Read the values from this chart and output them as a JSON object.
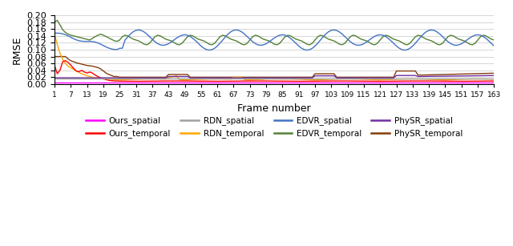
{
  "title": "",
  "xlabel": "Frame number",
  "ylabel": "RMSE",
  "ylim": [
    0,
    0.2
  ],
  "yticks": [
    0,
    0.02,
    0.04,
    0.06,
    0.08,
    0.1,
    0.12,
    0.14,
    0.16,
    0.18,
    0.2
  ],
  "xtick_labels": [
    "1",
    "7",
    "13",
    "19",
    "25",
    "31",
    "37",
    "43",
    "49",
    "55",
    "61",
    "67",
    "73",
    "79",
    "85",
    "91",
    "97",
    "103",
    "109",
    "115",
    "121",
    "127",
    "133",
    "139",
    "145",
    "151",
    "157",
    "163"
  ],
  "colors": {
    "Ours_spatial": "#FF00FF",
    "Ours_temporal": "#FF0000",
    "RDN_spatial": "#A0A0A0",
    "RDN_temporal": "#FFA500",
    "EDVR_spatial": "#4472C4",
    "EDVR_temporal": "#548235",
    "PhySR_spatial": "#7030A0",
    "PhySR_temporal": "#843C0C"
  },
  "legend_row1": [
    "Ours_spatial",
    "Ours_temporal",
    "RDN_spatial",
    "RDN_temporal"
  ],
  "legend_row2": [
    "EDVR_spatial",
    "EDVR_temporal",
    "PhySR_spatial",
    "PhySR_temporal"
  ]
}
